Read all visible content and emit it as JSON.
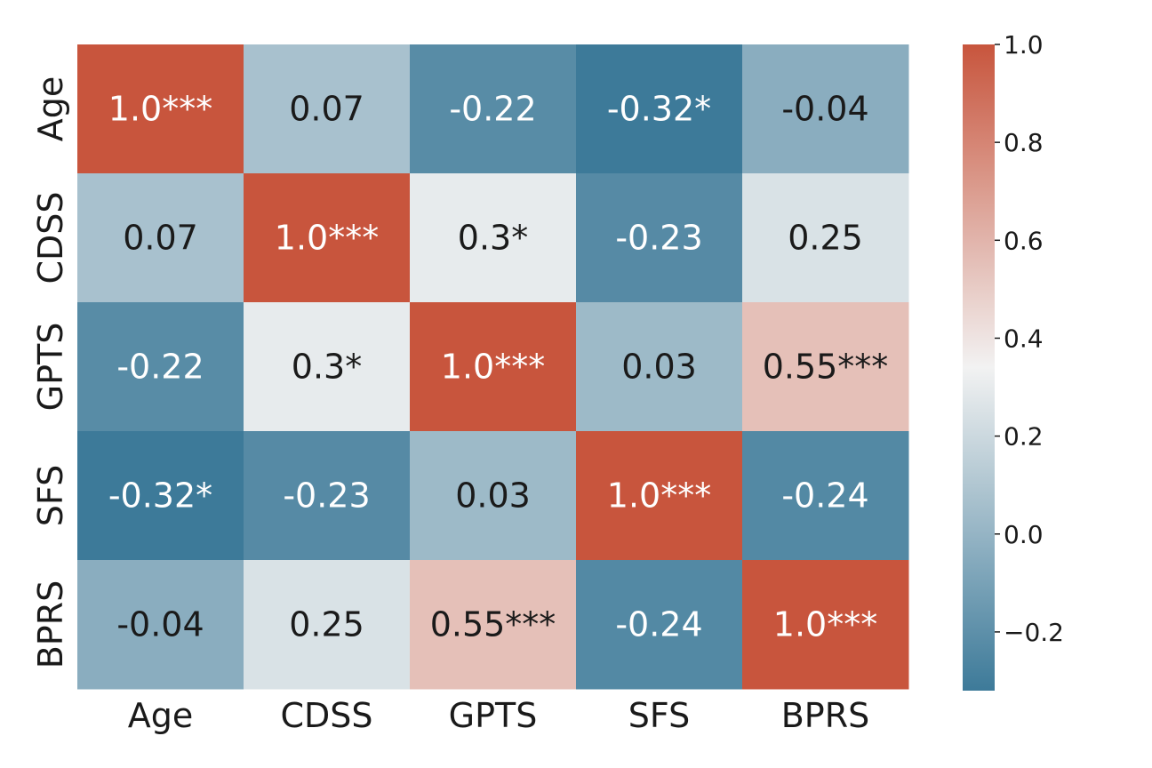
{
  "chart_data": {
    "type": "heatmap",
    "title": "",
    "xlabel": "",
    "ylabel": "",
    "x_categories": [
      "Age",
      "CDSS",
      "GPTS",
      "SFS",
      "BPRS"
    ],
    "y_categories": [
      "Age",
      "CDSS",
      "GPTS",
      "SFS",
      "BPRS"
    ],
    "values": [
      [
        1.0,
        0.07,
        -0.22,
        -0.32,
        -0.04
      ],
      [
        0.07,
        1.0,
        0.3,
        -0.23,
        0.25
      ],
      [
        -0.22,
        0.3,
        1.0,
        0.03,
        0.55
      ],
      [
        -0.32,
        -0.23,
        0.03,
        1.0,
        -0.24
      ],
      [
        -0.04,
        0.25,
        0.55,
        -0.24,
        1.0
      ]
    ],
    "annotations": [
      [
        "1.0***",
        "0.07",
        "-0.22",
        "-0.32*",
        "-0.04"
      ],
      [
        "0.07",
        "1.0***",
        "0.3*",
        "-0.23",
        "0.25"
      ],
      [
        "-0.22",
        "0.3*",
        "1.0***",
        "0.03",
        "0.55***"
      ],
      [
        "-0.32*",
        "-0.23",
        "0.03",
        "1.0***",
        "-0.24"
      ],
      [
        "-0.04",
        "0.25",
        "0.55***",
        "-0.24",
        "1.0***"
      ]
    ],
    "colorbar": {
      "range": [
        -0.32,
        1.0
      ],
      "center": 0.34,
      "ticks": [
        1.0,
        0.8,
        0.6,
        0.4,
        0.2,
        0.0,
        -0.2
      ],
      "tick_labels": [
        "1.0",
        "0.8",
        "0.6",
        "0.4",
        "0.2",
        "0.0",
        "−0.2"
      ]
    },
    "colors": {
      "low": "#3d7a99",
      "mid": "#f2f2f2",
      "high": "#c8553d",
      "text_dark": "#1a1a1a",
      "text_light": "#ffffff"
    }
  }
}
